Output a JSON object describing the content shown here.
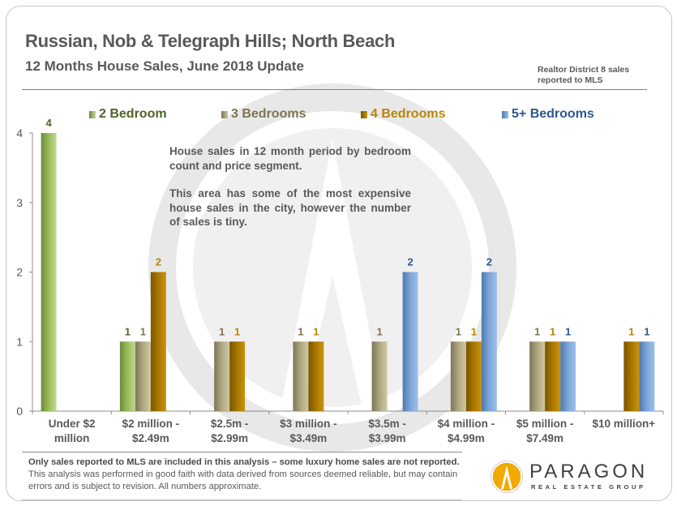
{
  "header": {
    "title": "Russian, Nob & Telegraph Hills; North Beach",
    "subtitle": "12 Months House Sales, June 2018 Update",
    "source_note_line1": "Realtor District 8 sales",
    "source_note_line2": "reported to MLS"
  },
  "annotation": {
    "paragraph1": "House sales in 12 month period by bedroom count and price segment.",
    "paragraph2": "This area has some of the most expensive house sales in the city, however the number of sales is tiny."
  },
  "footer": {
    "bold_text": "Only sales reported to MLS are included in this analysis – some luxury home sales are not reported.",
    "normal_text": " This analysis was performed in good faith with data derived from sources deemed reliable, but may contain errors and is subject to revision. All numbers approximate."
  },
  "logo": {
    "name": "PARAGON",
    "tagline": "REAL ESTATE GROUP",
    "icon": "paragon-logo-icon"
  },
  "chart_data": {
    "type": "bar",
    "title": "Russian, Nob & Telegraph Hills; North Beach",
    "subtitle": "12 Months House Sales, June 2018 Update",
    "xlabel": "",
    "ylabel": "",
    "ylim": [
      0,
      4
    ],
    "yticks": [
      "0",
      "1",
      "2",
      "3",
      "4"
    ],
    "grid": false,
    "legend_position": "top",
    "categories": [
      [
        "Under $2",
        "million"
      ],
      [
        "$2 million -",
        "$2.49m"
      ],
      [
        "$2.5m -",
        "$2.99m"
      ],
      [
        "$3 million -",
        "$3.49m"
      ],
      [
        "$3.5m -",
        "$3.99m"
      ],
      [
        "$4 million -",
        "$4.99m"
      ],
      [
        "$5 million -",
        "$7.49m"
      ],
      [
        "$10 million+"
      ]
    ],
    "series": [
      {
        "name": "2 Bedroom",
        "color": "#9bbb59",
        "label_color": "#4f6228",
        "values": [
          4,
          1,
          0,
          0,
          0,
          0,
          0,
          0
        ]
      },
      {
        "name": "3 Bedrooms",
        "color": "#b5ad84",
        "label_color": "#7f7452",
        "values": [
          0,
          1,
          1,
          1,
          1,
          1,
          1,
          0
        ]
      },
      {
        "name": "4 Bedrooms",
        "color": "#b8860b",
        "label_color": "#b8860b",
        "values": [
          0,
          2,
          1,
          1,
          0,
          1,
          1,
          1
        ]
      },
      {
        "name": "5+ Bedrooms",
        "color": "#7ea6d8",
        "label_color": "#2f5590",
        "values": [
          0,
          0,
          0,
          0,
          2,
          2,
          1,
          1
        ]
      }
    ]
  }
}
